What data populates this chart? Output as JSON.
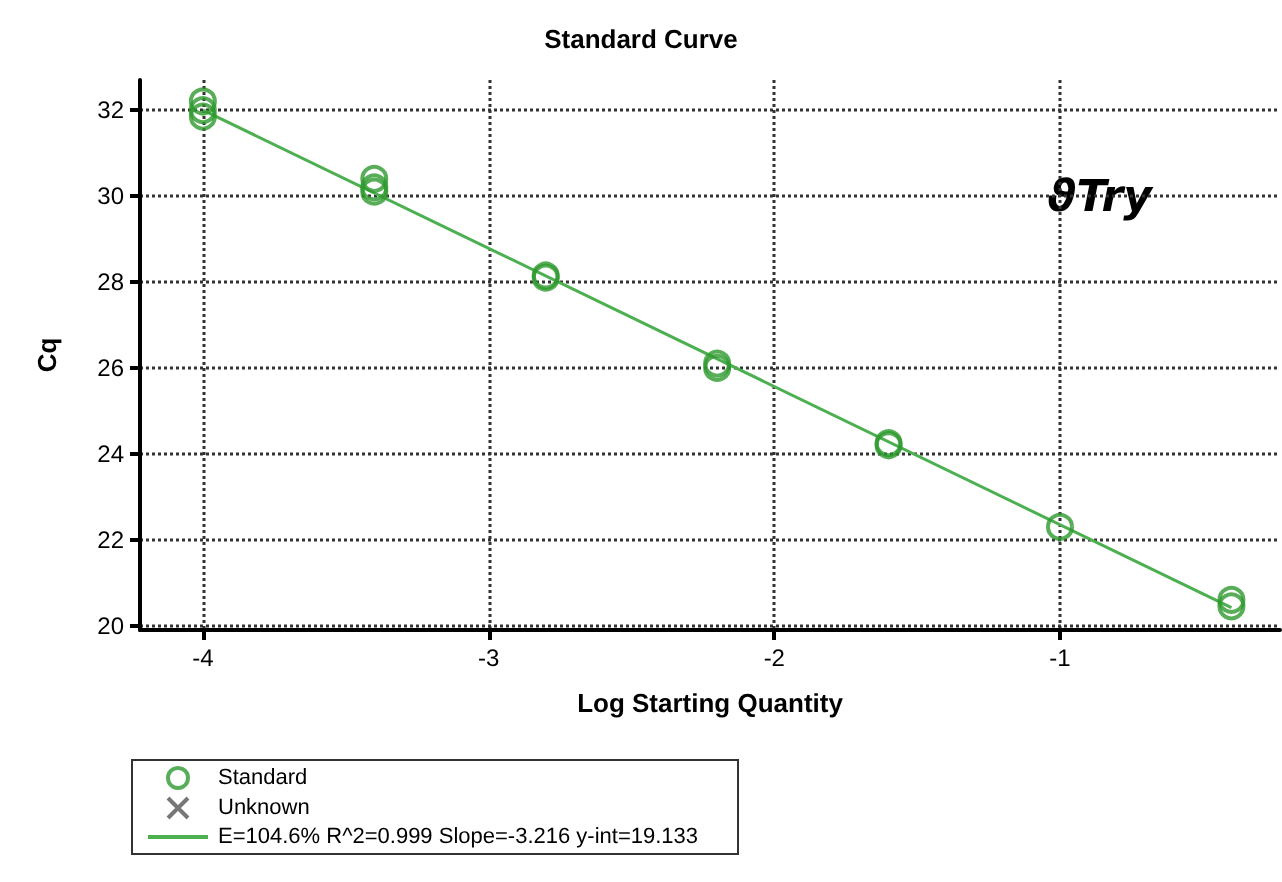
{
  "chart_data": {
    "type": "scatter",
    "title": "Standard Curve",
    "xlabel": "Log Starting Quantity",
    "ylabel": "Cq",
    "xlim": [
      -4.22,
      -0.23
    ],
    "xticks": [
      -4,
      -3,
      -2,
      -1
    ],
    "ylim": [
      19.9,
      32.7
    ],
    "yticks": [
      20,
      22,
      24,
      26,
      28,
      30,
      32
    ],
    "grid": true,
    "legend": "bottom left",
    "annotations": [
      "ϑTry"
    ],
    "series": [
      {
        "name": "Standard",
        "marker": "circle",
        "color": "#2e9a2e",
        "x": [
          -4,
          -4,
          -4,
          -3.4,
          -3.4,
          -3.4,
          -2.8,
          -2.8,
          -2.2,
          -2.2,
          -1.6,
          -1.6,
          -1,
          -0.4,
          -0.4
        ],
        "values": [
          32.2,
          32.0,
          31.85,
          30.4,
          30.2,
          30.1,
          28.1,
          28.15,
          26.1,
          26.0,
          24.2,
          24.25,
          22.3,
          20.6,
          20.45
        ]
      },
      {
        "name": "Unknown",
        "marker": "cross",
        "color": "#555555"
      },
      {
        "name": "E=104.6% R^2=0.999 Slope=-3.216 y-int=19.133",
        "type": "line",
        "marker": "none",
        "line_style": "solid",
        "color": "#4caf50",
        "x": [
          -4,
          -0.4
        ],
        "values": [
          32.0,
          20.42
        ]
      }
    ]
  }
}
